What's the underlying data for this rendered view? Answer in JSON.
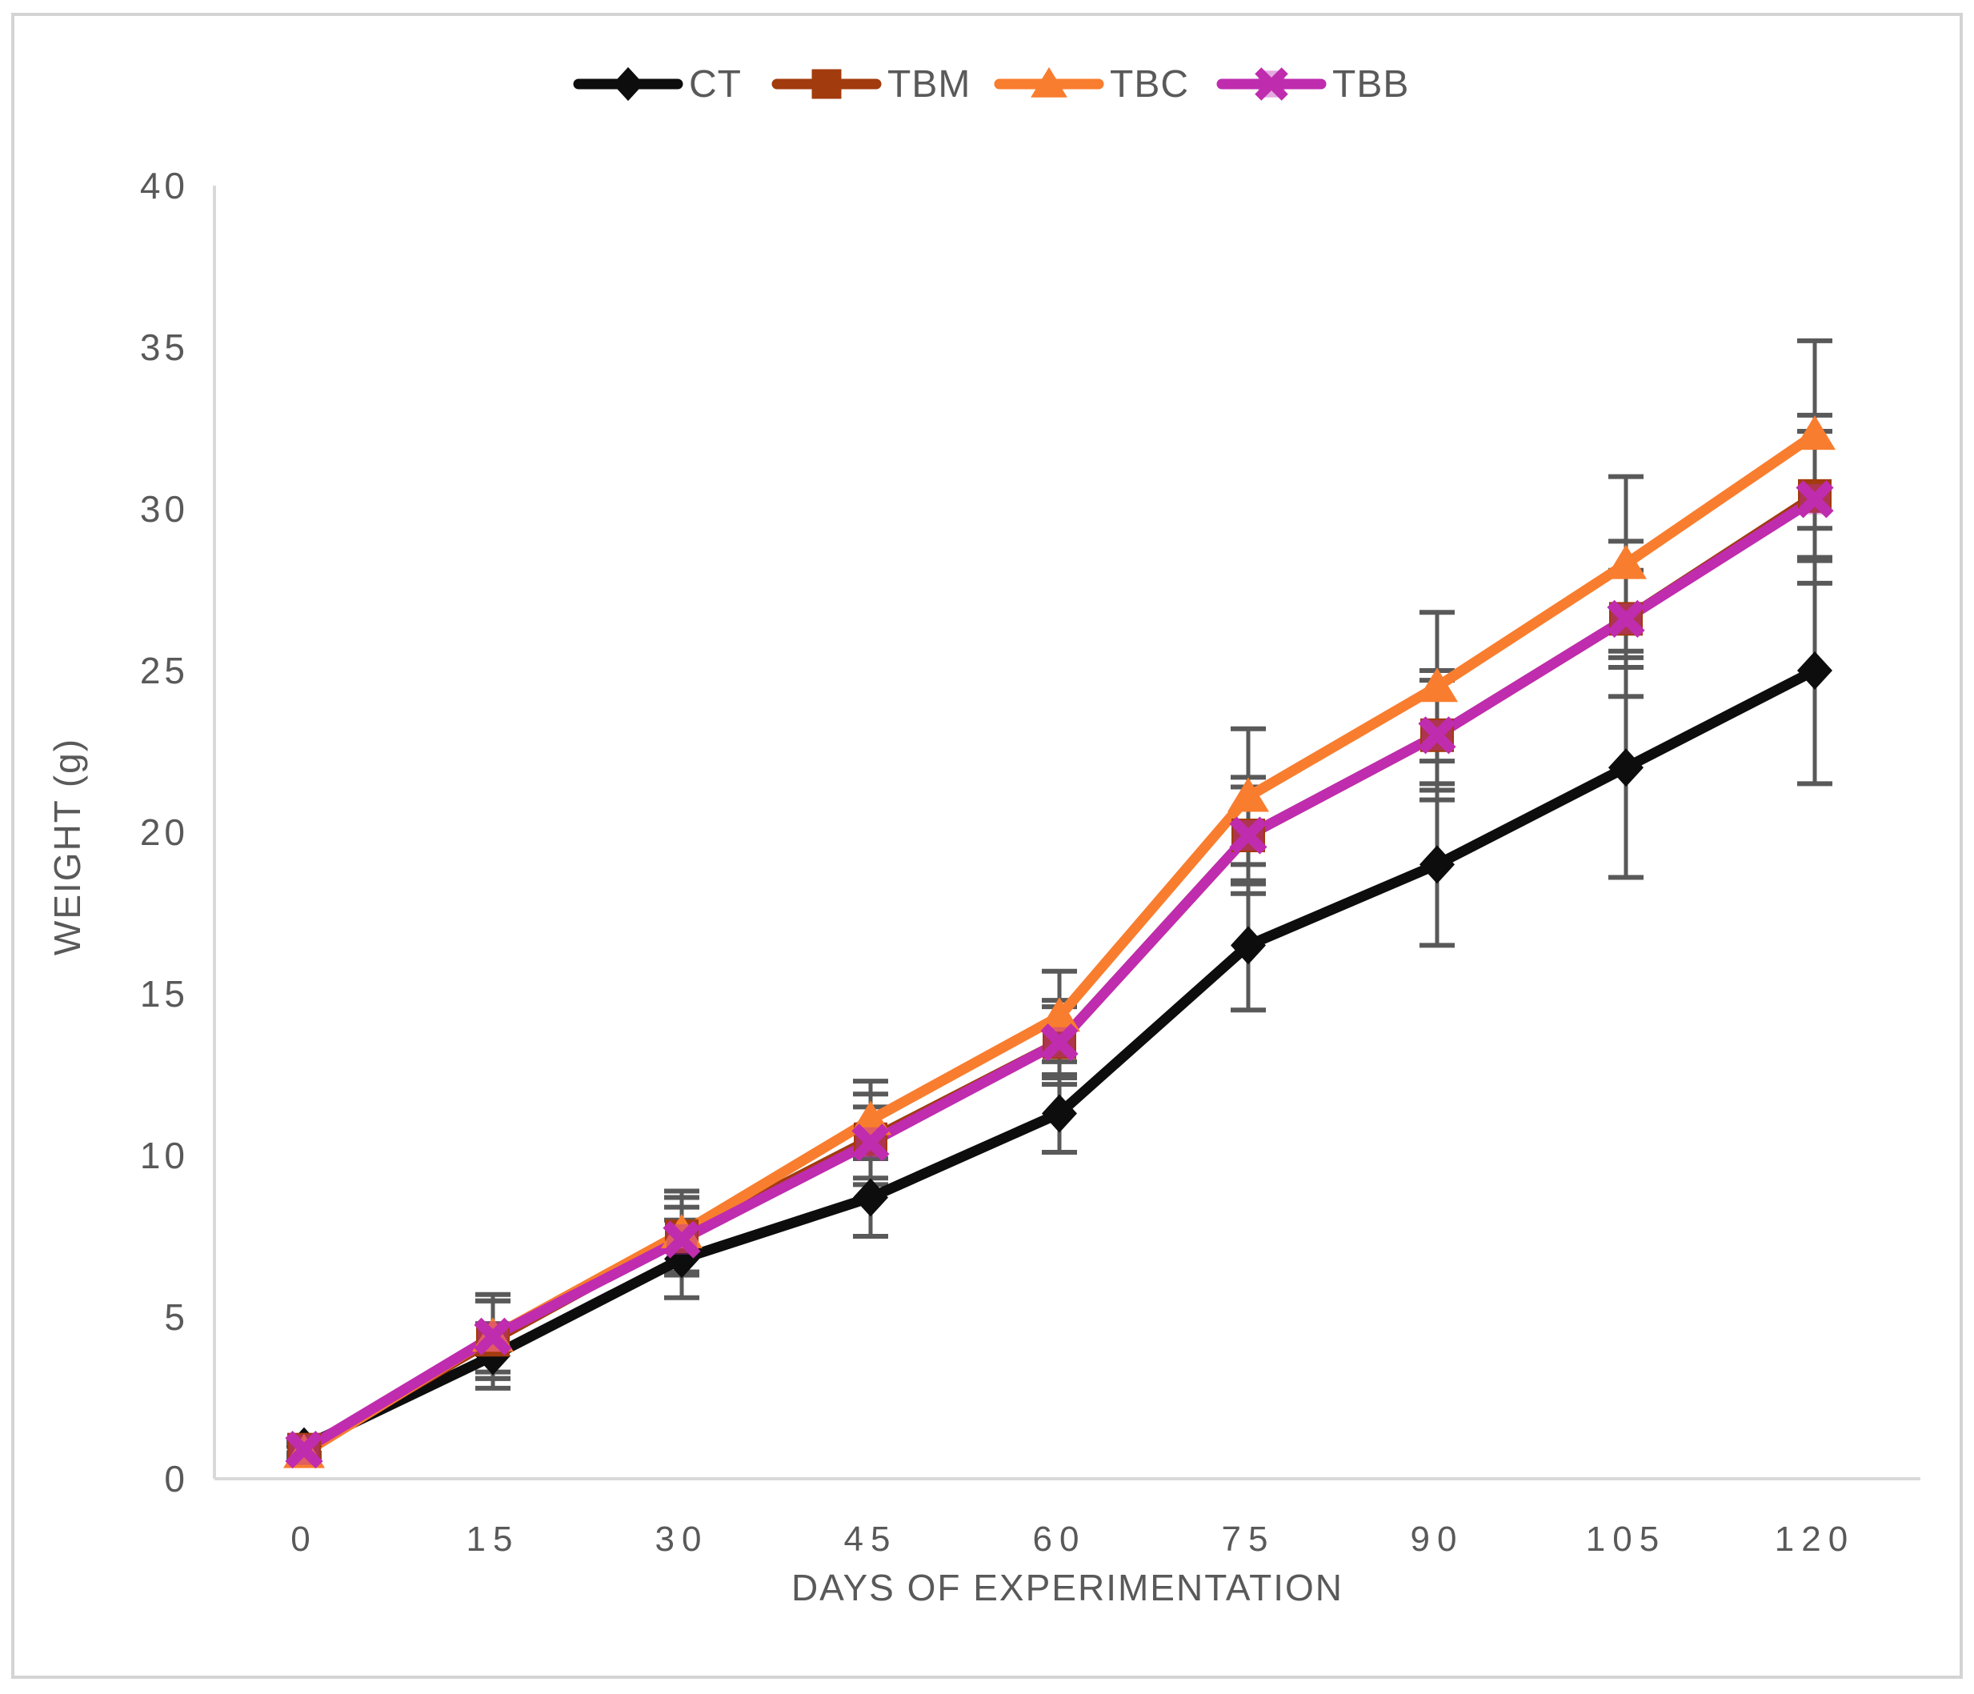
{
  "chart_data": {
    "type": "line",
    "title": "",
    "xlabel": "DAYS OF EXPERIMENTATION",
    "ylabel": "WEIGHT (g)",
    "x": [
      0,
      15,
      30,
      45,
      60,
      75,
      90,
      105,
      120
    ],
    "xlim": [
      0,
      120
    ],
    "ylim": [
      0,
      40
    ],
    "ytick_step": 5,
    "yticks": [
      0,
      5,
      10,
      15,
      20,
      25,
      30,
      35,
      40
    ],
    "grid": false,
    "legend_position": "top-center",
    "error_bars": true,
    "series": [
      {
        "name": "CT",
        "color": "#0d0d0d",
        "marker": "diamond",
        "values": [
          1.0,
          3.8,
          6.8,
          8.7,
          11.3,
          16.5,
          19.0,
          22.0,
          25.0
        ],
        "errors": [
          0.2,
          1.0,
          1.2,
          1.2,
          1.2,
          2.0,
          2.5,
          3.4,
          3.5
        ]
      },
      {
        "name": "TBM",
        "color": "#a23b0e",
        "marker": "square",
        "values": [
          0.9,
          4.3,
          7.5,
          10.5,
          13.5,
          19.9,
          23.0,
          26.6,
          30.4
        ],
        "errors": [
          0.2,
          1.2,
          1.2,
          1.4,
          1.3,
          1.5,
          1.7,
          1.5,
          2.0
        ]
      },
      {
        "name": "TBC",
        "color": "#f97d2e",
        "marker": "triangle",
        "values": [
          0.8,
          4.4,
          7.6,
          11.1,
          14.3,
          21.1,
          24.5,
          28.3,
          32.3
        ],
        "errors": [
          0.2,
          1.3,
          1.3,
          1.2,
          1.4,
          2.1,
          2.3,
          2.7,
          2.9
        ]
      },
      {
        "name": "TBB",
        "color": "#bf2cae",
        "marker": "x",
        "values": [
          0.9,
          4.4,
          7.4,
          10.4,
          13.5,
          19.9,
          23.0,
          26.6,
          30.3
        ],
        "errors": [
          0.2,
          1.1,
          1.0,
          1.1,
          1.1,
          1.8,
          2.0,
          2.4,
          2.6
        ]
      }
    ],
    "colors": {
      "axis_line": "#d9d9d9",
      "tick_label": "#595959",
      "axis_title": "#595959",
      "legend_text": "#595959",
      "error_bar": "#595959"
    }
  }
}
